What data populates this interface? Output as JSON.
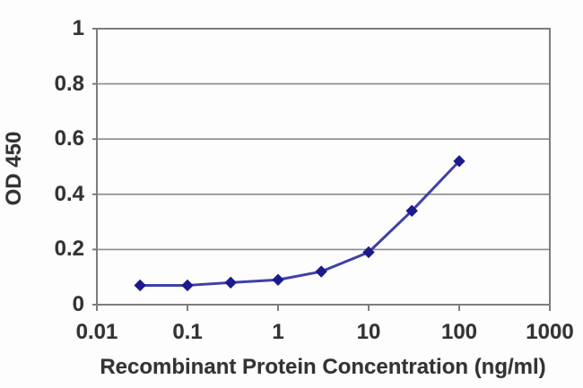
{
  "chart_data": {
    "type": "line",
    "title": "",
    "xlabel": "Recombinant Protein Concentration (ng/ml)",
    "ylabel": "OD 450",
    "x_scale": "log",
    "xlim": [
      0.01,
      1000
    ],
    "ylim": [
      0,
      1
    ],
    "xticks": [
      0.01,
      0.1,
      1,
      10,
      100,
      1000
    ],
    "xtick_labels": [
      "0.01",
      "0.1",
      "1",
      "10",
      "100",
      "1000"
    ],
    "yticks": [
      1,
      0.8,
      0.6,
      0.4,
      0.2,
      0
    ],
    "ytick_labels": [
      "1",
      "0.8",
      "0.6",
      "0.4",
      "0.2",
      "0"
    ],
    "grid": "horizontal-only",
    "legend": "none",
    "marker": "diamond",
    "x": [
      0.03,
      0.1,
      0.3,
      1,
      3,
      10,
      30,
      100
    ],
    "y": [
      0.07,
      0.07,
      0.08,
      0.09,
      0.12,
      0.19,
      0.34,
      0.52
    ],
    "colors": {
      "line": "#4040A8",
      "marker": "#1B1B8E",
      "grid": "#8a8a8a",
      "axis": "#7d7d7d",
      "text": "#333333",
      "background": "#FDFDFE"
    }
  }
}
